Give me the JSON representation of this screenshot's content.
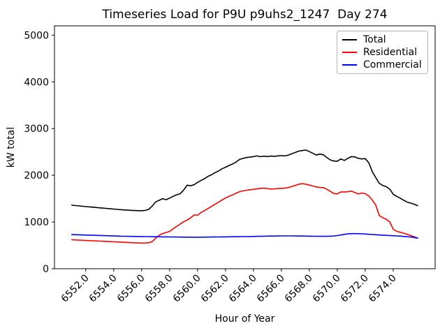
{
  "chart_data": {
    "type": "line",
    "title": "Timeseries Load for P9U p9uhs2_1247  Day 274",
    "xlabel": "Hour of Year",
    "ylabel": "kW total",
    "xlim": [
      6549.76,
      6577.0
    ],
    "ylim": [
      0,
      5200
    ],
    "grid": false,
    "legend_position": "upper right",
    "background_color": "#ffffff",
    "yticks": [
      0,
      1000,
      2000,
      3000,
      4000,
      5000
    ],
    "ytick_labels": [
      "0",
      "1000",
      "2000",
      "3000",
      "4000",
      "5000"
    ],
    "xticks": [
      6552,
      6554,
      6556,
      6558,
      6560,
      6562,
      6564,
      6566,
      6568,
      6570,
      6572,
      6574
    ],
    "xtick_labels": [
      "6552.0",
      "6554.0",
      "6556.0",
      "6558.0",
      "6560.0",
      "6562.0",
      "6564.0",
      "6566.0",
      "6568.0",
      "6570.0",
      "6572.0",
      "6574.0"
    ],
    "x": [
      6551,
      6551.25,
      6551.5,
      6551.75,
      6552,
      6552.25,
      6552.5,
      6552.75,
      6553,
      6553.25,
      6553.5,
      6553.75,
      6554,
      6554.25,
      6554.5,
      6554.75,
      6555,
      6555.25,
      6555.5,
      6555.75,
      6556,
      6556.25,
      6556.5,
      6556.75,
      6557,
      6557.25,
      6557.5,
      6557.75,
      6558,
      6558.25,
      6558.5,
      6558.75,
      6559,
      6559.25,
      6559.5,
      6559.75,
      6560,
      6560.25,
      6560.5,
      6560.75,
      6561,
      6561.25,
      6561.5,
      6561.75,
      6562,
      6562.25,
      6562.5,
      6562.75,
      6563,
      6563.25,
      6563.5,
      6563.75,
      6564,
      6564.25,
      6564.5,
      6564.75,
      6565,
      6565.25,
      6565.5,
      6565.75,
      6566,
      6566.25,
      6566.5,
      6566.75,
      6567,
      6567.25,
      6567.5,
      6567.75,
      6568,
      6568.25,
      6568.5,
      6568.75,
      6569,
      6569.25,
      6569.5,
      6569.75,
      6570,
      6570.25,
      6570.5,
      6570.75,
      6571,
      6571.25,
      6571.5,
      6571.75,
      6572,
      6572.25,
      6572.5,
      6572.75,
      6573,
      6573.25,
      6573.5,
      6573.75,
      6574,
      6574.25,
      6574.5,
      6574.75,
      6575,
      6575.25,
      6575.5,
      6575.75
    ],
    "series": [
      {
        "name": "Total",
        "color": "#000000",
        "values": [
          1360,
          1352,
          1345,
          1338,
          1330,
          1324,
          1318,
          1310,
          1303,
          1297,
          1290,
          1283,
          1276,
          1270,
          1264,
          1258,
          1253,
          1249,
          1246,
          1243,
          1242,
          1248,
          1270,
          1340,
          1430,
          1465,
          1500,
          1478,
          1512,
          1550,
          1582,
          1605,
          1682,
          1788,
          1775,
          1798,
          1848,
          1888,
          1928,
          1978,
          2010,
          2058,
          2092,
          2140,
          2172,
          2210,
          2242,
          2282,
          2338,
          2362,
          2380,
          2390,
          2400,
          2415,
          2398,
          2410,
          2400,
          2412,
          2404,
          2416,
          2420,
          2414,
          2432,
          2462,
          2490,
          2518,
          2530,
          2540,
          2508,
          2470,
          2432,
          2455,
          2438,
          2382,
          2330,
          2306,
          2300,
          2350,
          2318,
          2362,
          2400,
          2394,
          2362,
          2350,
          2356,
          2268,
          2080,
          1948,
          1828,
          1782,
          1756,
          1704,
          1595,
          1550,
          1510,
          1466,
          1425,
          1404,
          1380,
          1350
        ]
      },
      {
        "name": "Residential",
        "color": "#ff0000",
        "values": [
          620,
          616,
          612,
          608,
          604,
          600,
          597,
          594,
          590,
          587,
          584,
          580,
          576,
          572,
          569,
          566,
          562,
          558,
          555,
          552,
          549,
          550,
          556,
          580,
          655,
          715,
          755,
          775,
          800,
          855,
          905,
          955,
          1005,
          1040,
          1090,
          1150,
          1145,
          1205,
          1245,
          1290,
          1335,
          1380,
          1425,
          1470,
          1515,
          1550,
          1580,
          1615,
          1650,
          1665,
          1680,
          1690,
          1700,
          1710,
          1720,
          1725,
          1715,
          1705,
          1710,
          1715,
          1720,
          1725,
          1740,
          1760,
          1785,
          1810,
          1820,
          1810,
          1790,
          1770,
          1750,
          1740,
          1735,
          1700,
          1655,
          1610,
          1600,
          1645,
          1640,
          1650,
          1660,
          1630,
          1600,
          1620,
          1605,
          1555,
          1470,
          1360,
          1140,
          1090,
          1060,
          1000,
          845,
          800,
          780,
          760,
          735,
          710,
          685,
          655
        ]
      },
      {
        "name": "Commercial",
        "color": "#0000ff",
        "values": [
          730,
          728,
          726,
          723,
          720,
          718,
          716,
          713,
          711,
          709,
          707,
          704,
          701,
          699,
          697,
          695,
          694,
          692,
          691,
          690,
          689,
          688,
          687,
          685,
          684,
          683,
          682,
          681,
          680,
          679,
          678,
          677,
          676,
          675,
          675,
          674,
          674,
          675,
          676,
          677,
          678,
          679,
          680,
          681,
          682,
          683,
          684,
          685,
          686,
          687,
          688,
          689,
          691,
          693,
          694,
          696,
          698,
          699,
          700,
          701,
          702,
          703,
          703,
          702,
          701,
          700,
          699,
          698,
          697,
          696,
          695,
          694,
          694,
          695,
          697,
          700,
          710,
          722,
          735,
          745,
          750,
          752,
          750,
          747,
          742,
          737,
          732,
          727,
          722,
          718,
          714,
          710,
          706,
          702,
          698,
          692,
          685,
          678,
          668,
          655
        ]
      }
    ]
  }
}
